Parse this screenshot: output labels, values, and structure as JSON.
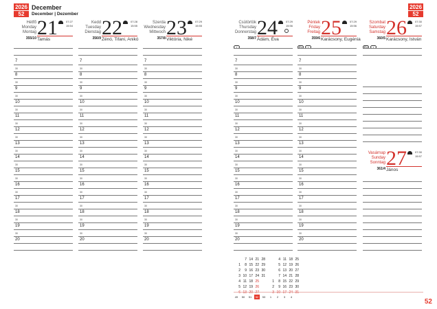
{
  "header": {
    "year": "2026",
    "week": "52",
    "month_title": "December",
    "month_subtitle": "December | Dezember"
  },
  "days": [
    {
      "names": [
        "Hétfő",
        "Monday",
        "Montag"
      ],
      "day": "21",
      "sunrise": "07:27",
      "sunset": "15:54",
      "day_number": "355/10",
      "nameday": "Tamás",
      "red": false,
      "icons": []
    },
    {
      "names": [
        "Kedd",
        "Tuesday",
        "Dienstag"
      ],
      "day": "22",
      "sunrise": "07:28",
      "sunset": "15:55",
      "day_number": "356/9",
      "nameday": "Zénó, Tifani, Anikó",
      "red": false,
      "icons": []
    },
    {
      "names": [
        "Szerda",
        "Wednesday",
        "Mittwoch"
      ],
      "day": "23",
      "sunrise": "07:29",
      "sunset": "15:55",
      "day_number": "357/8",
      "nameday": "Viktória, Niké",
      "red": false,
      "icons": []
    },
    {
      "names": [
        "Csütörtök",
        "Thursday",
        "Donnerstag"
      ],
      "day": "24",
      "sunrise": "07:29",
      "sunset": "15:56",
      "day_number": "358/7",
      "nameday": "Ádám, Éva",
      "red": false,
      "moon": "full-moon",
      "icons": [
        "holiday"
      ]
    },
    {
      "names": [
        "Péntek",
        "Friday",
        "Freitag"
      ],
      "day": "25",
      "sunrise": "07:29",
      "sunset": "15:56",
      "day_number": "359/6",
      "nameday": "Karácsony, Eugénia",
      "red": true,
      "icons": [
        "EU",
        "holiday"
      ]
    },
    {
      "names": [
        "Szombat",
        "Saturday",
        "Samstag"
      ],
      "day": "26",
      "sunrise": "07:30",
      "sunset": "15:57",
      "day_number": "360/5",
      "nameday": "Karácsony, István",
      "red": true,
      "icons": [
        "EU",
        "holiday"
      ]
    }
  ],
  "sunday": {
    "names": [
      "Vasárnap",
      "Sunday",
      "Sonntag"
    ],
    "day": "27",
    "sunrise": "07:30",
    "sunset": "15:57",
    "day_number": "361/4",
    "nameday": "János"
  },
  "hours": [
    "7",
    "8",
    "9",
    "10",
    "11",
    "12",
    "13",
    "14",
    "15",
    "16",
    "17",
    "18",
    "19",
    "20"
  ],
  "half_label": "30",
  "mini_calendar": {
    "december": [
      [
        "",
        "7",
        "14",
        "21",
        "28"
      ],
      [
        "1",
        "8",
        "15",
        "22",
        "29"
      ],
      [
        "2",
        "9",
        "16",
        "23",
        "30"
      ],
      [
        "3",
        "10",
        "17",
        "24",
        "31"
      ],
      [
        "4",
        "11",
        "18",
        "25",
        ""
      ],
      [
        "5",
        "12",
        "19",
        "26",
        ""
      ],
      [
        "6",
        "13",
        "20",
        "27",
        ""
      ]
    ],
    "january": [
      [
        "",
        "4",
        "11",
        "18",
        "25"
      ],
      [
        "",
        "5",
        "12",
        "19",
        "26"
      ],
      [
        "",
        "6",
        "13",
        "20",
        "27"
      ],
      [
        "",
        "7",
        "14",
        "21",
        "28"
      ],
      [
        "1",
        "8",
        "15",
        "22",
        "29"
      ],
      [
        "2",
        "9",
        "16",
        "23",
        "30"
      ],
      [
        "3",
        "10",
        "17",
        "24",
        "31"
      ]
    ],
    "weeks": [
      "49",
      "50",
      "51",
      "52",
      "53",
      "1",
      "2",
      "3",
      "4"
    ],
    "current_week": "52"
  },
  "page_number": "52",
  "colors": {
    "accent": "#e63a2e"
  }
}
